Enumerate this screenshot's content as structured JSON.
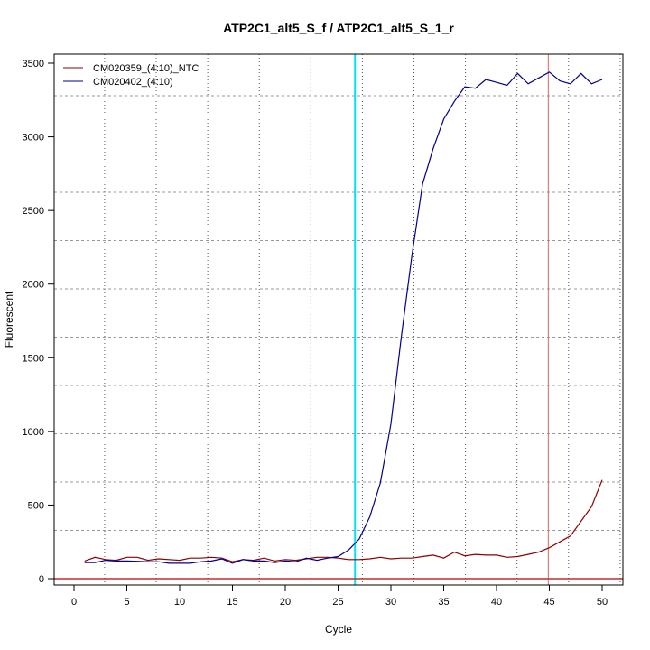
{
  "chart_data": {
    "type": "line",
    "title": "ATP2C1_alt5_S_f / ATP2C1_alt5_S_1_r",
    "xlabel": "Cycle",
    "ylabel": "Fluorescent",
    "xlim": [
      -2,
      52
    ],
    "ylim": [
      -30,
      3540
    ],
    "xticks": [
      0,
      5,
      10,
      15,
      20,
      25,
      30,
      35,
      40,
      45,
      50
    ],
    "yticks": [
      0,
      500,
      1000,
      1500,
      2000,
      2500,
      3000,
      3500
    ],
    "grid": true,
    "legend_position": "top-left",
    "x": [
      1,
      2,
      3,
      4,
      5,
      6,
      7,
      8,
      9,
      10,
      11,
      12,
      13,
      14,
      15,
      16,
      17,
      18,
      19,
      20,
      21,
      22,
      23,
      24,
      25,
      26,
      27,
      28,
      29,
      30,
      31,
      32,
      33,
      34,
      35,
      36,
      37,
      38,
      39,
      40,
      41,
      42,
      43,
      44,
      45,
      46,
      47,
      48,
      49,
      50
    ],
    "series": [
      {
        "name": "CM020359_(4:10)_NTC",
        "color": "#8B0000",
        "values": [
          120,
          145,
          130,
          125,
          145,
          145,
          125,
          135,
          130,
          125,
          140,
          140,
          145,
          140,
          115,
          130,
          125,
          140,
          120,
          130,
          125,
          135,
          145,
          145,
          140,
          130,
          130,
          135,
          145,
          135,
          140,
          140,
          150,
          160,
          140,
          180,
          155,
          165,
          160,
          160,
          145,
          150,
          165,
          180,
          210,
          250,
          290,
          390,
          490,
          670
        ]
      },
      {
        "name": "CM020402_(4:10)",
        "color": "#00008B",
        "values": [
          110,
          110,
          125,
          120,
          120,
          118,
          115,
          115,
          105,
          105,
          105,
          115,
          120,
          135,
          105,
          130,
          120,
          120,
          110,
          120,
          115,
          140,
          125,
          140,
          150,
          195,
          270,
          420,
          650,
          1050,
          1650,
          2200,
          2680,
          2920,
          3120,
          3240,
          3340,
          3330,
          3390,
          3370,
          3350,
          3430,
          3360,
          3400,
          3440,
          3380,
          3360,
          3430,
          3360,
          3390
        ]
      }
    ],
    "reference_lines": [
      {
        "orientation": "vertical",
        "x": 26.6,
        "color": "#00E5EE"
      },
      {
        "orientation": "vertical",
        "x": 44.9,
        "color": "#E06666"
      },
      {
        "orientation": "horizontal",
        "y": 0,
        "color": "#C03030"
      }
    ]
  }
}
